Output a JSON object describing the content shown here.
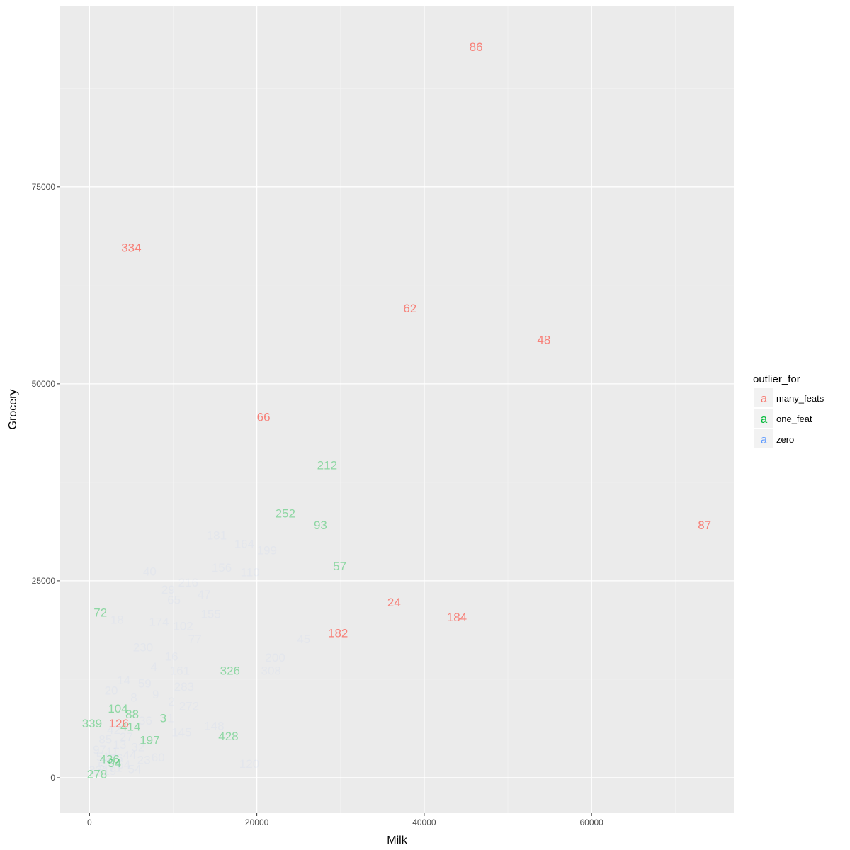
{
  "chart_data": {
    "type": "scatter",
    "title": "",
    "xlabel": "Milk",
    "ylabel": "Grocery",
    "xlim": [
      -3500,
      77000
    ],
    "ylim": [
      -4500,
      98000
    ],
    "x_ticks": [
      0,
      20000,
      40000,
      60000
    ],
    "y_ticks": [
      0,
      25000,
      50000,
      75000
    ],
    "x_tick_labels": [
      "0",
      "20000",
      "40000",
      "60000"
    ],
    "y_tick_labels": [
      "0",
      "25000",
      "50000",
      "75000"
    ],
    "grid": true,
    "legend_position": "right",
    "legend": {
      "title": "outlier_for",
      "glyph": "a",
      "entries": [
        {
          "name": "many_feats",
          "color": "#F8766D"
        },
        {
          "name": "one_feat",
          "color": "#00BA38"
        },
        {
          "name": "zero",
          "color": "#619CFF"
        }
      ]
    },
    "colors": {
      "many_feats": "#F8766D",
      "one_feat": "#00BA38",
      "zero": "#619CFF"
    },
    "series": [
      {
        "name": "many_feats",
        "alpha": 0.9,
        "points": [
          {
            "label": "86",
            "x": 46200,
            "y": 92800
          },
          {
            "label": "334",
            "x": 5000,
            "y": 67300
          },
          {
            "label": "62",
            "x": 38300,
            "y": 59600
          },
          {
            "label": "48",
            "x": 54300,
            "y": 55600
          },
          {
            "label": "66",
            "x": 20800,
            "y": 45800
          },
          {
            "label": "87",
            "x": 73500,
            "y": 32100
          },
          {
            "label": "24",
            "x": 36400,
            "y": 22300
          },
          {
            "label": "184",
            "x": 43900,
            "y": 20400
          },
          {
            "label": "182",
            "x": 29700,
            "y": 18400
          },
          {
            "label": "126",
            "x": 3500,
            "y": 6900
          }
        ]
      },
      {
        "name": "one_feat",
        "alpha": 0.4,
        "points": [
          {
            "label": "212",
            "x": 28400,
            "y": 39700
          },
          {
            "label": "252",
            "x": 23400,
            "y": 33600
          },
          {
            "label": "93",
            "x": 27600,
            "y": 32100
          },
          {
            "label": "57",
            "x": 29900,
            "y": 26900
          },
          {
            "label": "72",
            "x": 1300,
            "y": 21000
          },
          {
            "label": "326",
            "x": 16800,
            "y": 13600
          },
          {
            "label": "104",
            "x": 3400,
            "y": 8800
          },
          {
            "label": "88",
            "x": 5100,
            "y": 8100
          },
          {
            "label": "3",
            "x": 8800,
            "y": 7600
          },
          {
            "label": "339",
            "x": 300,
            "y": 6900
          },
          {
            "label": "414",
            "x": 4900,
            "y": 6500
          },
          {
            "label": "197",
            "x": 7200,
            "y": 4800
          },
          {
            "label": "428",
            "x": 16600,
            "y": 5300
          },
          {
            "label": "436",
            "x": 2400,
            "y": 2400
          },
          {
            "label": "94",
            "x": 3000,
            "y": 1900
          },
          {
            "label": "278",
            "x": 900,
            "y": 500
          }
        ]
      },
      {
        "name": "zero",
        "alpha": 0.06,
        "points": [
          {
            "label": "181",
            "x": 15200,
            "y": 30800
          },
          {
            "label": "164",
            "x": 18500,
            "y": 29700
          },
          {
            "label": "199",
            "x": 21200,
            "y": 28900
          },
          {
            "label": "156",
            "x": 15800,
            "y": 26700
          },
          {
            "label": "110",
            "x": 19200,
            "y": 26100
          },
          {
            "label": "40",
            "x": 7200,
            "y": 26200
          },
          {
            "label": "216",
            "x": 11800,
            "y": 24800
          },
          {
            "label": "29",
            "x": 9400,
            "y": 23900
          },
          {
            "label": "47",
            "x": 13700,
            "y": 23300
          },
          {
            "label": "65",
            "x": 10100,
            "y": 22600
          },
          {
            "label": "155",
            "x": 14500,
            "y": 20800
          },
          {
            "label": "174",
            "x": 8300,
            "y": 19800
          },
          {
            "label": "102",
            "x": 11200,
            "y": 19300
          },
          {
            "label": "18",
            "x": 3300,
            "y": 20100
          },
          {
            "label": "45",
            "x": 25600,
            "y": 17600
          },
          {
            "label": "77",
            "x": 12600,
            "y": 17600
          },
          {
            "label": "230",
            "x": 6400,
            "y": 16600
          },
          {
            "label": "16",
            "x": 9800,
            "y": 15400
          },
          {
            "label": "200",
            "x": 22200,
            "y": 15300
          },
          {
            "label": "4",
            "x": 7700,
            "y": 14100
          },
          {
            "label": "161",
            "x": 10800,
            "y": 13600
          },
          {
            "label": "308",
            "x": 21700,
            "y": 13600
          },
          {
            "label": "14",
            "x": 4100,
            "y": 12400
          },
          {
            "label": "59",
            "x": 6600,
            "y": 12000
          },
          {
            "label": "283",
            "x": 11300,
            "y": 11600
          },
          {
            "label": "20",
            "x": 2600,
            "y": 11100
          },
          {
            "label": "9",
            "x": 7900,
            "y": 10600
          },
          {
            "label": "8",
            "x": 5300,
            "y": 10200
          },
          {
            "label": "2",
            "x": 9800,
            "y": 9700
          },
          {
            "label": "272",
            "x": 11900,
            "y": 9100
          },
          {
            "label": "1",
            "x": 9700,
            "y": 7600
          },
          {
            "label": "36",
            "x": 6700,
            "y": 7300
          },
          {
            "label": "148",
            "x": 14900,
            "y": 6600
          },
          {
            "label": "42",
            "x": 2900,
            "y": 6100
          },
          {
            "label": "145",
            "x": 11000,
            "y": 5800
          },
          {
            "label": "27",
            "x": 4400,
            "y": 5200
          },
          {
            "label": "85",
            "x": 1900,
            "y": 4900
          },
          {
            "label": "13",
            "x": 3600,
            "y": 4200
          },
          {
            "label": "32",
            "x": 5800,
            "y": 3900
          },
          {
            "label": "97",
            "x": 1200,
            "y": 3600
          },
          {
            "label": "11",
            "x": 2700,
            "y": 3300
          },
          {
            "label": "44",
            "x": 4800,
            "y": 2900
          },
          {
            "label": "51",
            "x": 1600,
            "y": 2700
          },
          {
            "label": "76",
            "x": 3200,
            "y": 2500
          },
          {
            "label": "23",
            "x": 6500,
            "y": 2300
          },
          {
            "label": "38",
            "x": 2100,
            "y": 1900
          },
          {
            "label": "64",
            "x": 4100,
            "y": 1700
          },
          {
            "label": "5",
            "x": 1400,
            "y": 1500
          },
          {
            "label": "71",
            "x": 3100,
            "y": 1300
          },
          {
            "label": "120",
            "x": 19100,
            "y": 1800
          },
          {
            "label": "54",
            "x": 5400,
            "y": 1100
          },
          {
            "label": "33",
            "x": 700,
            "y": 1000
          },
          {
            "label": "19",
            "x": 2400,
            "y": 900
          },
          {
            "label": "60",
            "x": 8200,
            "y": 2600
          }
        ]
      }
    ]
  }
}
